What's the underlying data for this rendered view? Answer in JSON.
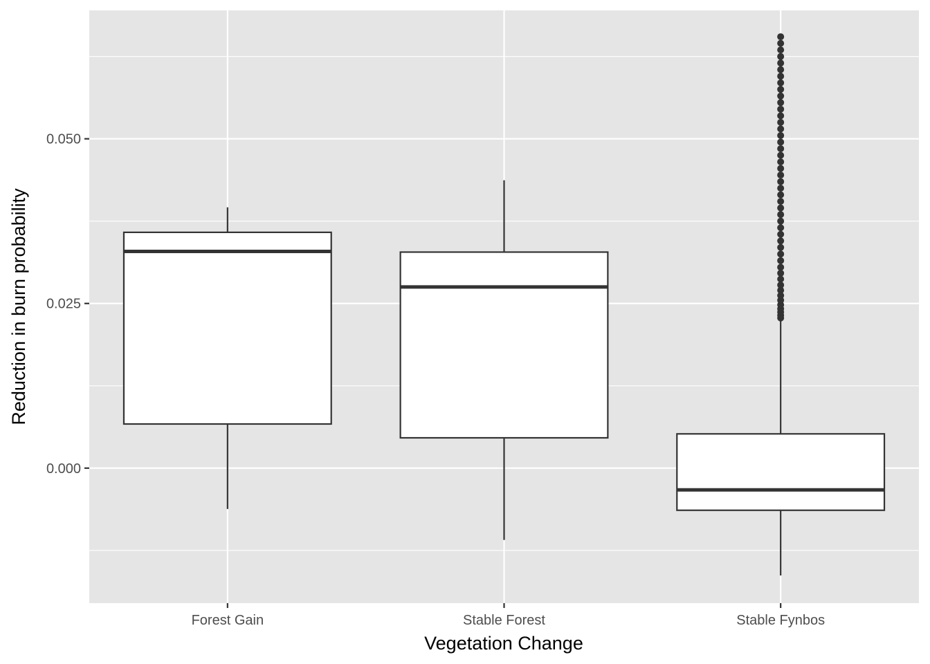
{
  "chart_data": {
    "type": "boxplot",
    "xlabel": "Vegetation Change",
    "ylabel": "Reduction in burn probability",
    "ylim": [
      -0.0205,
      0.0695
    ],
    "yticks": [
      0.0,
      0.025,
      0.05
    ],
    "ytick_labels": [
      "0.000",
      "0.025",
      "0.050"
    ],
    "grid": true,
    "categories": [
      "Forest Gain",
      "Stable Forest",
      "Stable Fynbos"
    ],
    "boxes": [
      {
        "category": "Forest Gain",
        "whisker_low": -0.0062,
        "q1": 0.0067,
        "median": 0.0329,
        "q3": 0.0358,
        "whisker_high": 0.0396,
        "outliers": []
      },
      {
        "category": "Stable Forest",
        "whisker_low": -0.0109,
        "q1": 0.0046,
        "median": 0.0275,
        "q3": 0.0328,
        "whisker_high": 0.0437,
        "outliers": []
      },
      {
        "category": "Stable Fynbos",
        "whisker_low": -0.0163,
        "q1": -0.0064,
        "median": -0.0033,
        "q3": 0.0052,
        "whisker_high": 0.0228,
        "outliers": [
          0.0228,
          0.0232,
          0.0237,
          0.0242,
          0.0248,
          0.0255,
          0.0262,
          0.027,
          0.0278,
          0.0287,
          0.0296,
          0.0305,
          0.0315,
          0.0325,
          0.0335,
          0.0345,
          0.0355,
          0.0365,
          0.0375,
          0.0385,
          0.0395,
          0.0405,
          0.0415,
          0.0425,
          0.0435,
          0.0445,
          0.0455,
          0.0465,
          0.0475,
          0.0485,
          0.0495,
          0.0505,
          0.0515,
          0.0525,
          0.0535,
          0.0545,
          0.0555,
          0.0565,
          0.0575,
          0.0585,
          0.0595,
          0.0605,
          0.0615,
          0.0625,
          0.0635,
          0.0645,
          0.0655
        ]
      }
    ],
    "colors": {
      "panel": "#e5e5e5",
      "grid": "#ffffff",
      "box_fill": "#ffffff",
      "box_line": "#333333",
      "median_line": "#333333",
      "outlier": "#333333",
      "tick": "#333333"
    }
  }
}
